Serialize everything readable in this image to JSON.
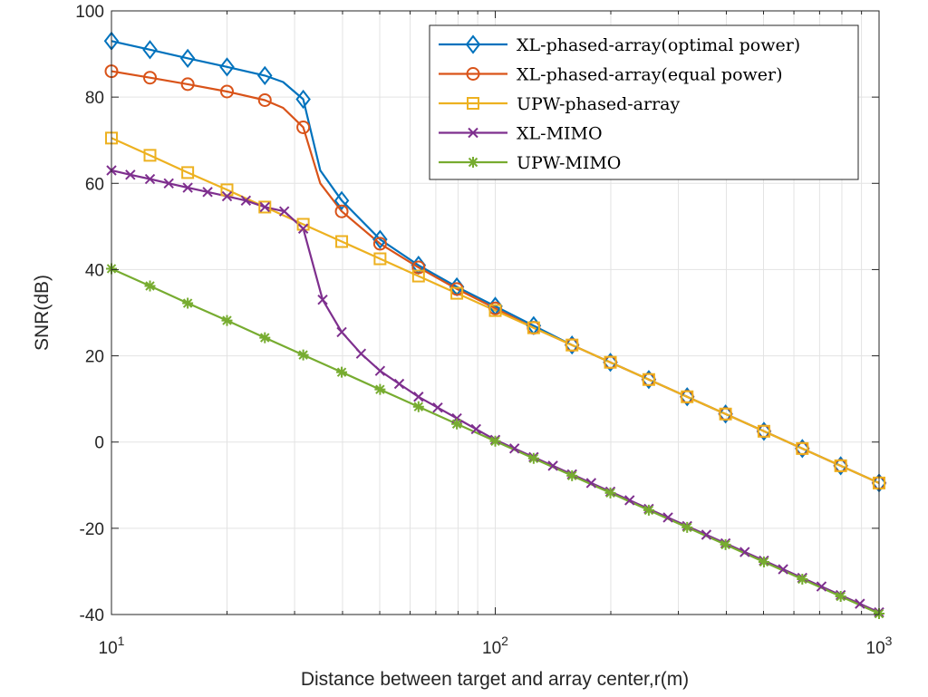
{
  "chart_data": {
    "type": "line",
    "xscale": "log",
    "xlabel": "Distance between target and array center,r(m)",
    "ylabel": "SNR(dB)",
    "xlim": [
      10,
      1000
    ],
    "ylim": [
      -40,
      100
    ],
    "grid": true,
    "legend_position": "top-right",
    "x_ticks": [
      {
        "value": 10,
        "base": "10",
        "exp": "1"
      },
      {
        "value": 100,
        "base": "10",
        "exp": "2"
      },
      {
        "value": 1000,
        "base": "10",
        "exp": "3"
      }
    ],
    "y_ticks": [
      100,
      80,
      60,
      40,
      20,
      0,
      -20,
      -40
    ],
    "y_tick_labels": [
      "100",
      "80",
      "60",
      "40",
      "20",
      "0",
      "-20",
      "-40"
    ],
    "series": [
      {
        "name": "XL-phased-array(optimal power)",
        "color": "#0072BD",
        "marker": "diamond",
        "points": [
          [
            10,
            93
          ],
          [
            12.6,
            91
          ],
          [
            15.8,
            89
          ],
          [
            20,
            87
          ],
          [
            25.1,
            85
          ],
          [
            28,
            83.5
          ],
          [
            31.6,
            79.5
          ],
          [
            35,
            63
          ],
          [
            39.8,
            56
          ],
          [
            50.1,
            47
          ],
          [
            63.1,
            41
          ],
          [
            79.4,
            36
          ],
          [
            100,
            31.5
          ],
          [
            125.9,
            27
          ],
          [
            158.5,
            22.5
          ],
          [
            199.5,
            18.5
          ],
          [
            251.2,
            14.5
          ],
          [
            316.2,
            10.5
          ],
          [
            398.1,
            6.5
          ],
          [
            501.2,
            2.5
          ],
          [
            631,
            -1.5
          ],
          [
            794.3,
            -5.5
          ],
          [
            1000,
            -9.5
          ]
        ],
        "marker_points": [
          [
            10,
            93
          ],
          [
            12.6,
            91
          ],
          [
            15.8,
            89
          ],
          [
            20,
            87
          ],
          [
            25.1,
            85
          ],
          [
            31.6,
            79.5
          ],
          [
            39.8,
            56
          ],
          [
            50.1,
            47
          ],
          [
            63.1,
            41
          ],
          [
            79.4,
            36
          ],
          [
            100,
            31.5
          ],
          [
            125.9,
            27
          ],
          [
            158.5,
            22.5
          ],
          [
            199.5,
            18.5
          ],
          [
            251.2,
            14.5
          ],
          [
            316.2,
            10.5
          ],
          [
            398.1,
            6.5
          ],
          [
            501.2,
            2.5
          ],
          [
            631,
            -1.5
          ],
          [
            794.3,
            -5.5
          ],
          [
            1000,
            -9.5
          ]
        ]
      },
      {
        "name": "XL-phased-array(equal power)",
        "color": "#D95319",
        "marker": "circle",
        "points": [
          [
            10,
            86
          ],
          [
            12.6,
            84.5
          ],
          [
            15.8,
            83
          ],
          [
            20,
            81.3
          ],
          [
            25.1,
            79.3
          ],
          [
            28,
            77.5
          ],
          [
            31.6,
            73
          ],
          [
            35,
            60
          ],
          [
            39.8,
            53.5
          ],
          [
            50.1,
            46
          ],
          [
            63.1,
            40.5
          ],
          [
            79.4,
            35.5
          ],
          [
            100,
            31
          ],
          [
            125.9,
            26.5
          ],
          [
            158.5,
            22.5
          ],
          [
            199.5,
            18.5
          ],
          [
            251.2,
            14.5
          ],
          [
            316.2,
            10.5
          ],
          [
            398.1,
            6.5
          ],
          [
            501.2,
            2.5
          ],
          [
            631,
            -1.5
          ],
          [
            794.3,
            -5.5
          ],
          [
            1000,
            -9.5
          ]
        ],
        "marker_points": [
          [
            10,
            86
          ],
          [
            12.6,
            84.5
          ],
          [
            15.8,
            83
          ],
          [
            20,
            81.3
          ],
          [
            25.1,
            79.3
          ],
          [
            31.6,
            73
          ],
          [
            39.8,
            53.5
          ],
          [
            50.1,
            46
          ],
          [
            63.1,
            40.5
          ],
          [
            79.4,
            35.5
          ],
          [
            100,
            31
          ],
          [
            125.9,
            26.5
          ],
          [
            158.5,
            22.5
          ],
          [
            199.5,
            18.5
          ],
          [
            251.2,
            14.5
          ],
          [
            316.2,
            10.5
          ],
          [
            398.1,
            6.5
          ],
          [
            501.2,
            2.5
          ],
          [
            631,
            -1.5
          ],
          [
            794.3,
            -5.5
          ],
          [
            1000,
            -9.5
          ]
        ]
      },
      {
        "name": "UPW-phased-array",
        "color": "#EDB120",
        "marker": "square",
        "points": [
          [
            10,
            70.5
          ],
          [
            12.6,
            66.5
          ],
          [
            15.8,
            62.5
          ],
          [
            20,
            58.5
          ],
          [
            25.1,
            54.5
          ],
          [
            31.6,
            50.5
          ],
          [
            39.8,
            46.5
          ],
          [
            50.1,
            42.5
          ],
          [
            63.1,
            38.5
          ],
          [
            79.4,
            34.5
          ],
          [
            100,
            30.5
          ],
          [
            125.9,
            26.5
          ],
          [
            158.5,
            22.5
          ],
          [
            199.5,
            18.5
          ],
          [
            251.2,
            14.5
          ],
          [
            316.2,
            10.5
          ],
          [
            398.1,
            6.5
          ],
          [
            501.2,
            2.5
          ],
          [
            631,
            -1.5
          ],
          [
            794.3,
            -5.5
          ],
          [
            1000,
            -9.5
          ]
        ],
        "marker_points": [
          [
            10,
            70.5
          ],
          [
            12.6,
            66.5
          ],
          [
            15.8,
            62.5
          ],
          [
            20,
            58.5
          ],
          [
            25.1,
            54.5
          ],
          [
            31.6,
            50.5
          ],
          [
            39.8,
            46.5
          ],
          [
            50.1,
            42.5
          ],
          [
            63.1,
            38.5
          ],
          [
            79.4,
            34.5
          ],
          [
            100,
            30.5
          ],
          [
            125.9,
            26.5
          ],
          [
            158.5,
            22.5
          ],
          [
            199.5,
            18.5
          ],
          [
            251.2,
            14.5
          ],
          [
            316.2,
            10.5
          ],
          [
            398.1,
            6.5
          ],
          [
            501.2,
            2.5
          ],
          [
            631,
            -1.5
          ],
          [
            794.3,
            -5.5
          ],
          [
            1000,
            -9.5
          ]
        ]
      },
      {
        "name": "XL-MIMO",
        "color": "#7E2F8E",
        "marker": "x",
        "points": [
          [
            10,
            63
          ],
          [
            11.2,
            62
          ],
          [
            12.6,
            61
          ],
          [
            14.1,
            60
          ],
          [
            15.8,
            59
          ],
          [
            17.8,
            58
          ],
          [
            20,
            57
          ],
          [
            22.4,
            56
          ],
          [
            25.1,
            54.5
          ],
          [
            28.2,
            53.5
          ],
          [
            31.6,
            49.5
          ],
          [
            35.5,
            33
          ],
          [
            39.8,
            25.5
          ],
          [
            44.7,
            20.5
          ],
          [
            50.1,
            16.5
          ],
          [
            56.2,
            13.5
          ],
          [
            63.1,
            10.5
          ],
          [
            70.8,
            8
          ],
          [
            79.4,
            5.5
          ],
          [
            89.1,
            3
          ],
          [
            100,
            0.5
          ],
          [
            112.2,
            -1.5
          ],
          [
            125.9,
            -3.5
          ],
          [
            141.3,
            -5.5
          ],
          [
            158.5,
            -7.5
          ],
          [
            177.8,
            -9.5
          ],
          [
            199.5,
            -11.5
          ],
          [
            223.9,
            -13.5
          ],
          [
            251.2,
            -15.5
          ],
          [
            281.8,
            -17.5
          ],
          [
            316.2,
            -19.5
          ],
          [
            354.8,
            -21.5
          ],
          [
            398.1,
            -23.5
          ],
          [
            446.7,
            -25.5
          ],
          [
            501.2,
            -27.5
          ],
          [
            562.3,
            -29.5
          ],
          [
            631,
            -31.5
          ],
          [
            707.9,
            -33.5
          ],
          [
            794.3,
            -35.5
          ],
          [
            891.3,
            -37.5
          ],
          [
            1000,
            -39.5
          ]
        ],
        "marker_points": [
          [
            10,
            63
          ],
          [
            11.2,
            62
          ],
          [
            12.6,
            61
          ],
          [
            14.1,
            60
          ],
          [
            15.8,
            59
          ],
          [
            17.8,
            58
          ],
          [
            20,
            57
          ],
          [
            22.4,
            56
          ],
          [
            25.1,
            54.5
          ],
          [
            28.2,
            53.5
          ],
          [
            31.6,
            49.5
          ],
          [
            35.5,
            33
          ],
          [
            39.8,
            25.5
          ],
          [
            44.7,
            20.5
          ],
          [
            50.1,
            16.5
          ],
          [
            56.2,
            13.5
          ],
          [
            63.1,
            10.5
          ],
          [
            70.8,
            8
          ],
          [
            79.4,
            5.5
          ],
          [
            89.1,
            3
          ],
          [
            100,
            0.5
          ],
          [
            112.2,
            -1.5
          ],
          [
            125.9,
            -3.5
          ],
          [
            141.3,
            -5.5
          ],
          [
            158.5,
            -7.5
          ],
          [
            177.8,
            -9.5
          ],
          [
            199.5,
            -11.5
          ],
          [
            223.9,
            -13.5
          ],
          [
            251.2,
            -15.5
          ],
          [
            281.8,
            -17.5
          ],
          [
            316.2,
            -19.5
          ],
          [
            354.8,
            -21.5
          ],
          [
            398.1,
            -23.5
          ],
          [
            446.7,
            -25.5
          ],
          [
            501.2,
            -27.5
          ],
          [
            562.3,
            -29.5
          ],
          [
            631,
            -31.5
          ],
          [
            707.9,
            -33.5
          ],
          [
            794.3,
            -35.5
          ],
          [
            891.3,
            -37.5
          ],
          [
            1000,
            -39.5
          ]
        ]
      },
      {
        "name": "UPW-MIMO",
        "color": "#77AC30",
        "marker": "asterisk",
        "points": [
          [
            10,
            40.2
          ],
          [
            12.6,
            36.2
          ],
          [
            15.8,
            32.2
          ],
          [
            20,
            28.2
          ],
          [
            25.1,
            24.2
          ],
          [
            31.6,
            20.2
          ],
          [
            39.8,
            16.2
          ],
          [
            50.1,
            12.2
          ],
          [
            63.1,
            8.2
          ],
          [
            79.4,
            4.2
          ],
          [
            100,
            0.2
          ],
          [
            125.9,
            -3.8
          ],
          [
            158.5,
            -7.8
          ],
          [
            199.5,
            -11.8
          ],
          [
            251.2,
            -15.8
          ],
          [
            316.2,
            -19.8
          ],
          [
            398.1,
            -23.8
          ],
          [
            501.2,
            -27.8
          ],
          [
            631,
            -31.8
          ],
          [
            794.3,
            -35.8
          ],
          [
            1000,
            -39.8
          ]
        ],
        "marker_points": [
          [
            10,
            40.2
          ],
          [
            12.6,
            36.2
          ],
          [
            15.8,
            32.2
          ],
          [
            20,
            28.2
          ],
          [
            25.1,
            24.2
          ],
          [
            31.6,
            20.2
          ],
          [
            39.8,
            16.2
          ],
          [
            50.1,
            12.2
          ],
          [
            63.1,
            8.2
          ],
          [
            79.4,
            4.2
          ],
          [
            100,
            0.2
          ],
          [
            125.9,
            -3.8
          ],
          [
            158.5,
            -7.8
          ],
          [
            199.5,
            -11.8
          ],
          [
            251.2,
            -15.8
          ],
          [
            316.2,
            -19.8
          ],
          [
            398.1,
            -23.8
          ],
          [
            501.2,
            -27.8
          ],
          [
            631,
            -31.8
          ],
          [
            794.3,
            -35.8
          ],
          [
            1000,
            -39.8
          ]
        ]
      }
    ]
  }
}
